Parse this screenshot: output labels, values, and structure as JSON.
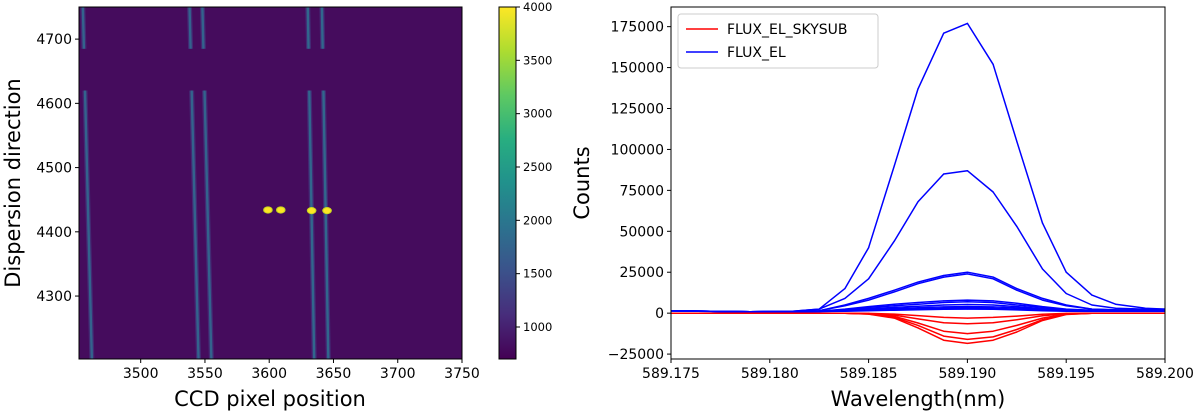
{
  "chart_data": [
    {
      "type": "heatmap",
      "xlabel": "CCD pixel position",
      "ylabel": "Dispersion direction",
      "xlim": [
        3452,
        3750
      ],
      "ylim": [
        4202,
        4750
      ],
      "xticks": [
        3500,
        3550,
        3600,
        3650,
        3700,
        3750
      ],
      "yticks": [
        4300,
        4400,
        4500,
        4600,
        4700
      ],
      "gap_y": [
        4620,
        4685
      ],
      "background_value": 800,
      "colorbar": {
        "min": 700,
        "max": 4000,
        "ticks": [
          1000,
          1500,
          2000,
          2500,
          3000,
          3500,
          4000
        ]
      },
      "fibers": [
        {
          "x_top": 3455,
          "x_bottom": 3462,
          "value": 1750
        },
        {
          "x_top": 3538,
          "x_bottom": 3545,
          "value": 1750
        },
        {
          "x_top": 3548,
          "x_bottom": 3555,
          "value": 1750
        },
        {
          "x_top": 3630,
          "x_bottom": 3635,
          "value": 1800
        },
        {
          "x_top": 3641,
          "x_bottom": 3646,
          "value": 1800
        }
      ],
      "spots": [
        {
          "x": 3599,
          "y": 4434,
          "value": 4000
        },
        {
          "x": 3609,
          "y": 4434,
          "value": 4000
        },
        {
          "x": 3633,
          "y": 4433,
          "value": 4000
        },
        {
          "x": 3645,
          "y": 4433,
          "value": 4000
        }
      ]
    },
    {
      "type": "line",
      "xlabel": "Wavelength(nm)",
      "ylabel": "Counts",
      "xlim": [
        589.175,
        589.2
      ],
      "ylim": [
        -28000,
        187000
      ],
      "xticks": [
        "589.175",
        "589.180",
        "589.185",
        "589.190",
        "589.195",
        "589.200"
      ],
      "yticks": [
        -25000,
        0,
        25000,
        50000,
        75000,
        100000,
        125000,
        150000,
        175000
      ],
      "legend_position": "top-left",
      "legend": [
        {
          "label": "FLUX_EL_SKYSUB",
          "color": "#ff0000"
        },
        {
          "label": "FLUX_EL",
          "color": "#0000ff"
        }
      ],
      "x": [
        589.175,
        589.177,
        589.179,
        589.181,
        589.1825,
        589.1838,
        589.185,
        589.1863,
        589.1875,
        589.1888,
        589.19,
        589.1913,
        589.1925,
        589.1938,
        589.195,
        589.1963,
        589.1975,
        589.199,
        589.2
      ],
      "series": [
        {
          "color": "#0000ff",
          "values": [
            1500,
            1200,
            900,
            1000,
            2500,
            15000,
            40000,
            90000,
            137000,
            171000,
            177000,
            152000,
            105000,
            55000,
            25000,
            11000,
            5500,
            3000,
            2500
          ]
        },
        {
          "color": "#0000ff",
          "values": [
            1500,
            1200,
            900,
            1000,
            2500,
            9000,
            21000,
            44000,
            68000,
            85000,
            87000,
            74000,
            53000,
            27000,
            12000,
            5000,
            3000,
            2500,
            2500
          ]
        },
        {
          "color": "#0000ff",
          "values": [
            1500,
            1200,
            900,
            1000,
            1500,
            5000,
            9000,
            14000,
            19000,
            23000,
            25000,
            22000,
            15000,
            9000,
            5000,
            2500,
            2000,
            2000,
            2000
          ]
        },
        {
          "color": "#0000ff",
          "values": [
            1500,
            1200,
            900,
            1000,
            1500,
            4500,
            8000,
            13000,
            18000,
            22000,
            24000,
            21000,
            14000,
            8000,
            4500,
            2500,
            2000,
            2000,
            2000
          ]
        },
        {
          "color": "#0000ff",
          "values": [
            1500,
            1200,
            900,
            1000,
            1200,
            2500,
            4000,
            5500,
            6500,
            7500,
            8000,
            7500,
            6000,
            4000,
            2500,
            1800,
            1800,
            1800,
            1800
          ]
        },
        {
          "color": "#0000ff",
          "values": [
            1500,
            1200,
            900,
            1000,
            1200,
            2200,
            3500,
            4500,
            5500,
            6500,
            7000,
            6500,
            5000,
            3500,
            2200,
            1700,
            1700,
            1700,
            1700
          ]
        },
        {
          "color": "#0000ff",
          "values": [
            1400,
            1200,
            900,
            1000,
            1100,
            1800,
            2800,
            3500,
            4200,
            5000,
            5300,
            5000,
            4000,
            2800,
            1800,
            1500,
            1500,
            1500,
            1500
          ]
        },
        {
          "color": "#0000ff",
          "values": [
            1400,
            1200,
            900,
            1000,
            1100,
            1600,
            2200,
            2800,
            3300,
            3800,
            4000,
            3800,
            3200,
            2300,
            1600,
            1400,
            1400,
            1400,
            1400
          ]
        },
        {
          "color": "#0000ff",
          "values": [
            1300,
            1100,
            800,
            900,
            1000,
            1300,
            1800,
            2200,
            2600,
            3000,
            3200,
            3000,
            2500,
            1800,
            1300,
            1200,
            1200,
            1200,
            1200
          ]
        },
        {
          "color": "#0000ff",
          "values": [
            1300,
            1100,
            800,
            900,
            1000,
            1200,
            1500,
            1800,
            2100,
            2400,
            2500,
            2400,
            2000,
            1500,
            1200,
            1100,
            1100,
            1100,
            1100
          ]
        },
        {
          "color": "#ff0000",
          "values": [
            0,
            0,
            0,
            0,
            0,
            0,
            -400,
            -2000,
            -6000,
            -11000,
            -12500,
            -11000,
            -7500,
            -3000,
            -500,
            0,
            0,
            0,
            0
          ]
        },
        {
          "color": "#ff0000",
          "values": [
            0,
            0,
            0,
            0,
            0,
            0,
            -500,
            -2500,
            -7500,
            -14000,
            -16000,
            -14500,
            -10000,
            -4000,
            -700,
            0,
            0,
            0,
            0
          ]
        },
        {
          "color": "#ff0000",
          "values": [
            0,
            0,
            0,
            0,
            0,
            0,
            -600,
            -3000,
            -9000,
            -16500,
            -18500,
            -16500,
            -11500,
            -4500,
            -800,
            0,
            0,
            0,
            0
          ]
        },
        {
          "color": "#ff0000",
          "values": [
            0,
            0,
            0,
            0,
            0,
            0,
            -250,
            -1200,
            -3500,
            -5800,
            -6500,
            -5800,
            -4000,
            -1600,
            -300,
            0,
            0,
            0,
            0
          ]
        },
        {
          "color": "#ff0000",
          "values": [
            0,
            0,
            0,
            0,
            0,
            0,
            -150,
            -600,
            -1500,
            -2600,
            -3000,
            -2600,
            -1800,
            -700,
            -150,
            0,
            0,
            0,
            0
          ]
        }
      ]
    }
  ]
}
